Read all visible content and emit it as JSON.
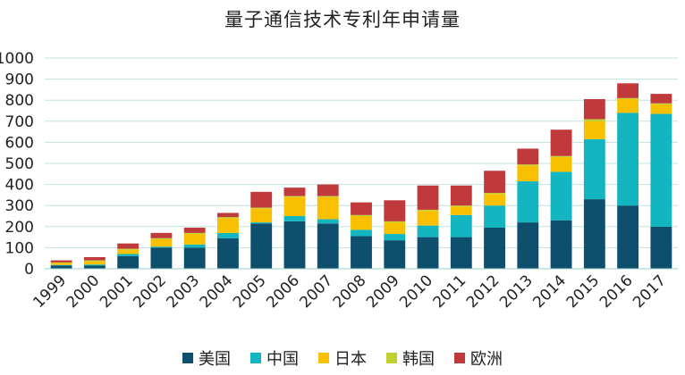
{
  "chart_data": {
    "type": "bar",
    "stacked": true,
    "title": "量子通信技术专利年申请量",
    "xlabel": "",
    "ylabel": "",
    "ylim": [
      0,
      1000
    ],
    "yticks": [
      0,
      100,
      200,
      300,
      400,
      500,
      600,
      700,
      800,
      900,
      1000
    ],
    "grid": true,
    "legend_position": "bottom",
    "categories": [
      "1999",
      "2000",
      "2001",
      "2002",
      "2003",
      "2004",
      "2005",
      "2006",
      "2007",
      "2008",
      "2009",
      "2010",
      "2011",
      "2012",
      "2013",
      "2014",
      "2015",
      "2016",
      "2017"
    ],
    "series": [
      {
        "name": "美国",
        "color": "#0d4f6c",
        "values": [
          15,
          15,
          60,
          100,
          100,
          145,
          215,
          225,
          215,
          155,
          135,
          150,
          150,
          195,
          220,
          230,
          330,
          300,
          200
        ]
      },
      {
        "name": "中国",
        "color": "#12b5c0",
        "values": [
          3,
          5,
          10,
          5,
          15,
          25,
          5,
          25,
          20,
          30,
          30,
          55,
          105,
          105,
          195,
          230,
          285,
          440,
          535
        ]
      },
      {
        "name": "日本",
        "color": "#f8c000",
        "values": [
          10,
          15,
          20,
          35,
          50,
          70,
          65,
          90,
          105,
          65,
          55,
          70,
          40,
          55,
          75,
          70,
          85,
          65,
          45
        ]
      },
      {
        "name": "韩国",
        "color": "#c0d030",
        "values": [
          2,
          5,
          5,
          5,
          5,
          5,
          5,
          5,
          5,
          5,
          5,
          5,
          5,
          5,
          5,
          5,
          10,
          5,
          5
        ]
      },
      {
        "name": "欧洲",
        "color": "#c0393b",
        "values": [
          10,
          15,
          25,
          25,
          25,
          20,
          75,
          40,
          55,
          60,
          100,
          115,
          95,
          105,
          75,
          125,
          95,
          70,
          45
        ]
      }
    ]
  }
}
